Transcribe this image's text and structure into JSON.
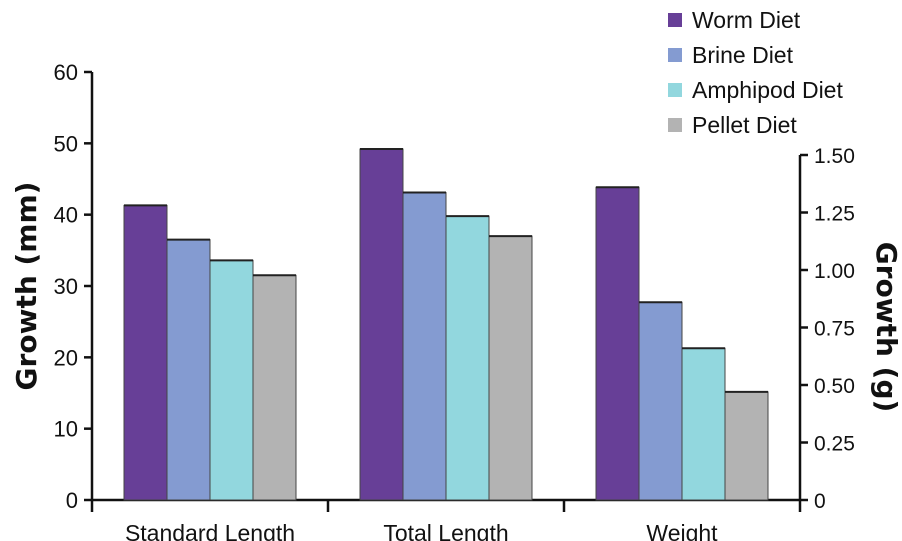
{
  "chart_data": {
    "type": "bar",
    "categories": [
      "Standard Length",
      "Total Length",
      "Weight"
    ],
    "series": [
      {
        "name": "Worm Diet",
        "color": "#673f97",
        "values": [
          41.3,
          49.2,
          1.36
        ]
      },
      {
        "name": "Brine Diet",
        "color": "#849bd1",
        "values": [
          36.5,
          43.1,
          0.86
        ]
      },
      {
        "name": "Amphipod Diet",
        "color": "#92d7de",
        "values": [
          33.6,
          39.8,
          0.66
        ]
      },
      {
        "name": "Pellet Diet",
        "color": "#b3b3b3",
        "values": [
          31.5,
          37.0,
          0.47
        ]
      }
    ],
    "ylabel": "Growth (mm)",
    "ylim": [
      0,
      60
    ],
    "yticks": [
      "0",
      "10",
      "20",
      "30",
      "40",
      "50",
      "60"
    ],
    "y2label": "Growth (g)",
    "y2lim": [
      0,
      1.5
    ],
    "y2ticks": [
      "0",
      "0.25",
      "0.50",
      "0.75",
      "1.00",
      "1.25",
      "1.50"
    ],
    "secondary_axis_categories": [
      "Weight"
    ],
    "grid": false,
    "legend": "top-right"
  }
}
